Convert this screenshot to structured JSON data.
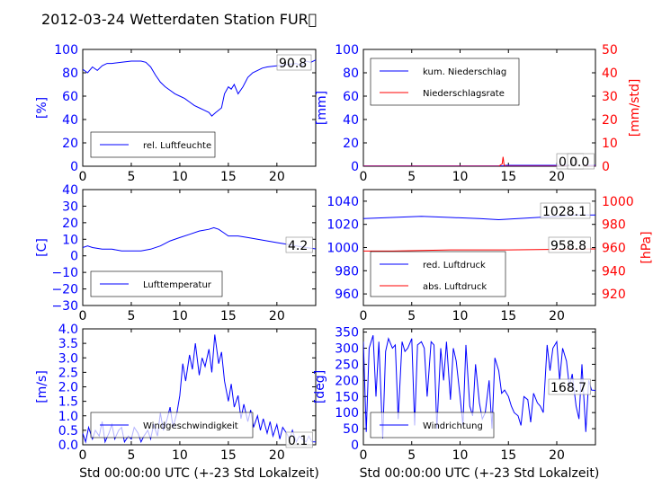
{
  "title": "2012-03-24 Wetterdaten Station FUR\u0000",
  "chart_data": [
    {
      "type": "line",
      "panel": "rel_luftfeuchte",
      "ylabel": "[%]",
      "xlim": [
        0,
        24
      ],
      "ylim": [
        0,
        100
      ],
      "xticks": [
        "0",
        "5",
        "10",
        "15",
        "20"
      ],
      "yticks": [
        "0",
        "20",
        "40",
        "60",
        "80",
        "100"
      ],
      "grid": false,
      "legend": {
        "location": "lower-left",
        "entries": [
          {
            "label": "rel. Luftfeuchte",
            "color": "#0000ff"
          }
        ]
      },
      "annotation": "90.8",
      "series": [
        {
          "name": "rel. Luftfeuchte",
          "color": "#0000ff",
          "x": [
            0,
            0.5,
            1,
            1.5,
            2,
            2.5,
            3,
            4,
            5,
            6,
            6.5,
            7,
            7.5,
            8,
            8.5,
            9,
            9.5,
            10,
            10.5,
            11,
            11.5,
            12,
            12.5,
            13,
            13.3,
            13.7,
            14,
            14.3,
            14.6,
            15,
            15.3,
            15.6,
            16,
            16.5,
            17,
            17.5,
            18,
            18.5,
            19,
            20,
            21,
            22,
            22.5,
            23,
            23.5,
            24
          ],
          "y": [
            83,
            80,
            85,
            82,
            86,
            88,
            88,
            89,
            90,
            90,
            89,
            85,
            78,
            72,
            68,
            65,
            62,
            60,
            58,
            55,
            52,
            50,
            48,
            46,
            43,
            46,
            48,
            50,
            62,
            68,
            66,
            70,
            62,
            68,
            76,
            80,
            82,
            84,
            85,
            86,
            87,
            88,
            86,
            90,
            89,
            91
          ]
        }
      ]
    },
    {
      "type": "line",
      "panel": "niederschlag",
      "ylabel": "[mm]",
      "ylabel_right": "[mm/std]",
      "xlim": [
        0,
        24
      ],
      "ylim": [
        0,
        100
      ],
      "ylim_right": [
        0,
        50
      ],
      "xticks": [
        "0",
        "5",
        "10",
        "15",
        "20"
      ],
      "yticks": [
        "0",
        "20",
        "40",
        "60",
        "80",
        "100"
      ],
      "yticks_right": [
        "0",
        "10",
        "20",
        "30",
        "40",
        "50"
      ],
      "grid": false,
      "legend": {
        "location": "top-left",
        "entries": [
          {
            "label": "kum. Niederschlag",
            "color": "#0000ff"
          },
          {
            "label": "Niederschlagsrate",
            "color": "#ff0000"
          }
        ]
      },
      "annotations": [
        "0.0",
        "0.0"
      ],
      "series": [
        {
          "name": "kum. Niederschlag",
          "color": "#0000ff",
          "x": [
            0,
            14.5,
            14.7,
            24
          ],
          "y": [
            0.3,
            0.3,
            0.8,
            0.8
          ]
        },
        {
          "name": "Niederschlagsrate",
          "color": "#ff0000",
          "axis": "right",
          "x": [
            0,
            14,
            14.35,
            14.45,
            14.55,
            14.7,
            15,
            24
          ],
          "y": [
            0,
            0,
            1,
            4,
            0.5,
            0,
            0,
            0
          ]
        }
      ]
    },
    {
      "type": "line",
      "panel": "lufttemperatur",
      "ylabel": "[C]",
      "xlim": [
        0,
        24
      ],
      "ylim": [
        -30,
        40
      ],
      "xticks": [
        "0",
        "5",
        "10",
        "15",
        "20"
      ],
      "yticks": [
        "−30",
        "−20",
        "−10",
        "0",
        "10",
        "20",
        "30",
        "40"
      ],
      "grid": false,
      "legend": {
        "location": "lower-left",
        "entries": [
          {
            "label": "Lufttemperatur",
            "color": "#0000ff"
          }
        ]
      },
      "annotation": "4.2",
      "series": [
        {
          "name": "Lufttemperatur",
          "color": "#0000ff",
          "x": [
            0,
            0.5,
            1,
            2,
            3,
            4,
            5,
            6,
            7,
            8,
            9,
            10,
            11,
            12,
            13,
            13.5,
            14,
            14.5,
            15,
            16,
            17,
            18,
            19,
            20,
            21,
            22,
            23,
            24
          ],
          "y": [
            5,
            6,
            5,
            4,
            4,
            3,
            3,
            3,
            4,
            6,
            9,
            11,
            13,
            15,
            16,
            17,
            16,
            14,
            12,
            12,
            11,
            10,
            9,
            8,
            7,
            6,
            5,
            4.2
          ]
        }
      ]
    },
    {
      "type": "line",
      "panel": "luftdruck",
      "ylabel_right": "[hPa]",
      "xlim": [
        0,
        24
      ],
      "ylim": [
        950,
        1050
      ],
      "ylim_right": [
        910,
        1010
      ],
      "xticks": [
        "0",
        "5",
        "10",
        "15",
        "20"
      ],
      "yticks": [
        "960",
        "980",
        "1000",
        "1020",
        "1040"
      ],
      "yticks_right": [
        "920",
        "940",
        "960",
        "980",
        "1000"
      ],
      "grid": false,
      "legend": {
        "location": "lower-left",
        "entries": [
          {
            "label": "red. Luftdruck",
            "color": "#0000ff"
          },
          {
            "label": "abs. Luftdruck",
            "color": "#ff0000"
          }
        ]
      },
      "annotations": [
        "1028.1",
        "958.8"
      ],
      "series": [
        {
          "name": "red. Luftdruck",
          "color": "#0000ff",
          "x": [
            0,
            3,
            6,
            9,
            12,
            14,
            16,
            18,
            20,
            22,
            24
          ],
          "y": [
            1025,
            1026,
            1027,
            1026,
            1025,
            1024,
            1025,
            1026,
            1027,
            1028,
            1028.1
          ]
        },
        {
          "name": "abs. Luftdruck",
          "color": "#ff0000",
          "axis": "right",
          "x": [
            0,
            3,
            6,
            9,
            12,
            15,
            18,
            21,
            24
          ],
          "y": [
            957,
            957,
            957.5,
            958,
            958,
            958,
            958.2,
            958.5,
            958.8
          ]
        }
      ]
    },
    {
      "type": "line",
      "panel": "windgeschwindigkeit",
      "ylabel": "[m/s]",
      "xlabel": "Std 00:00:00 UTC (+-23 Std Lokalzeit)",
      "xlim": [
        0,
        24
      ],
      "ylim": [
        0,
        4
      ],
      "xticks": [
        "0",
        "5",
        "10",
        "15",
        "20"
      ],
      "yticks": [
        "0.0",
        "0.5",
        "1.0",
        "1.5",
        "2.0",
        "2.5",
        "3.0",
        "3.5",
        "4.0"
      ],
      "grid": false,
      "legend": {
        "location": "lower-left",
        "entries": [
          {
            "label": "Windgeschwindigkeit",
            "color": "#0000ff"
          }
        ]
      },
      "annotation": "0.1",
      "series": [
        {
          "name": "Windgeschwindigkeit",
          "color": "#0000ff",
          "x": [
            0,
            0.3,
            0.6,
            1,
            1.3,
            1.7,
            2,
            2.3,
            2.7,
            3,
            3.3,
            3.7,
            4,
            4.3,
            4.7,
            5,
            5.3,
            5.7,
            6,
            6.3,
            6.7,
            7,
            7.3,
            7.7,
            8,
            8.3,
            8.7,
            9,
            9.3,
            9.7,
            10,
            10.3,
            10.6,
            11,
            11.3,
            11.6,
            12,
            12.3,
            12.6,
            13,
            13.3,
            13.6,
            14,
            14.3,
            14.6,
            15,
            15.3,
            15.6,
            16,
            16.3,
            16.6,
            17,
            17.3,
            17.6,
            18,
            18.3,
            18.6,
            19,
            19.3,
            19.6,
            20,
            20.3,
            20.6,
            21,
            21.3,
            21.6,
            22,
            22.3,
            22.6,
            23,
            23.3,
            23.6,
            24
          ],
          "y": [
            0.4,
            0.1,
            0.6,
            0.2,
            0.5,
            0.3,
            0.8,
            0.1,
            0.4,
            0.7,
            0.2,
            0.5,
            0.6,
            0.1,
            0.3,
            0.2,
            0.6,
            0.4,
            0.1,
            0.3,
            0.5,
            0.2,
            0.7,
            0.3,
            1.1,
            0.5,
            0.9,
            1.3,
            0.6,
            1.1,
            1.7,
            2.8,
            2.2,
            3.1,
            2.6,
            3.5,
            2.4,
            3.0,
            2.7,
            3.3,
            2.5,
            3.8,
            2.8,
            3.2,
            2.2,
            1.5,
            2.1,
            1.3,
            1.7,
            0.9,
            1.4,
            0.8,
            1.2,
            0.6,
            1.0,
            0.5,
            0.9,
            0.4,
            0.8,
            0.3,
            0.7,
            0.2,
            0.6,
            0.4,
            0.2,
            0.5,
            0.1,
            0.3,
            0.2,
            0.1,
            0.3,
            0.1,
            0.1
          ]
        }
      ]
    },
    {
      "type": "line",
      "panel": "windrichtung",
      "ylabel": "[deg]",
      "xlabel": "Std 00:00:00 UTC (+-23 Std Lokalzeit)",
      "xlim": [
        0,
        24
      ],
      "ylim": [
        0,
        360
      ],
      "xticks": [
        "0",
        "5",
        "10",
        "15",
        "20"
      ],
      "yticks": [
        "0",
        "50",
        "100",
        "150",
        "200",
        "250",
        "300",
        "350"
      ],
      "grid": false,
      "legend": {
        "location": "lower-left",
        "entries": [
          {
            "label": "Windrichtung",
            "color": "#0000ff"
          }
        ]
      },
      "annotation": "168.7",
      "series": [
        {
          "name": "Windrichtung",
          "color": "#0000ff",
          "x": [
            0,
            0.3,
            0.6,
            1,
            1.3,
            1.6,
            2,
            2.3,
            2.6,
            3,
            3.3,
            3.6,
            4,
            4.3,
            4.6,
            5,
            5.3,
            5.6,
            6,
            6.3,
            6.6,
            7,
            7.3,
            7.6,
            8,
            8.3,
            8.6,
            9,
            9.3,
            9.6,
            10,
            10.3,
            10.6,
            11,
            11.3,
            11.6,
            12,
            12.3,
            12.6,
            13,
            13.3,
            13.6,
            14,
            14.3,
            14.6,
            15,
            15.3,
            15.6,
            16,
            16.3,
            16.6,
            17,
            17.3,
            17.6,
            18,
            18.3,
            18.6,
            19,
            19.3,
            19.6,
            20,
            20.3,
            20.6,
            21,
            21.3,
            21.6,
            22,
            22.3,
            22.6,
            23,
            23.3,
            23.6,
            24
          ],
          "y": [
            320,
            40,
            300,
            340,
            150,
            320,
            20,
            290,
            330,
            300,
            310,
            80,
            320,
            290,
            300,
            330,
            60,
            310,
            320,
            300,
            150,
            320,
            310,
            50,
            300,
            200,
            320,
            140,
            300,
            260,
            150,
            60,
            310,
            120,
            90,
            250,
            130,
            80,
            100,
            200,
            50,
            270,
            230,
            160,
            170,
            150,
            120,
            100,
            90,
            60,
            150,
            140,
            70,
            160,
            130,
            120,
            100,
            310,
            230,
            300,
            320,
            200,
            300,
            260,
            180,
            220,
            120,
            80,
            250,
            40,
            200,
            170,
            168.7
          ]
        }
      ]
    }
  ]
}
